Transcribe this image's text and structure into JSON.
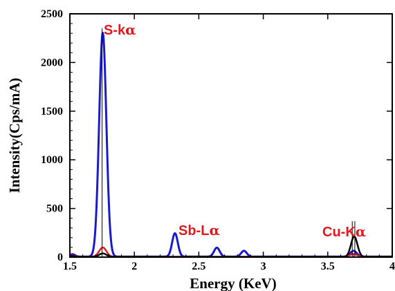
{
  "chart_data": {
    "type": "line",
    "title": "",
    "xlabel": "Energy (KeV)",
    "ylabel": "Intensity(Cps/mA)",
    "xlim": [
      1.5,
      4.0
    ],
    "ylim": [
      0,
      2500
    ],
    "xticks": [
      1.5,
      2.0,
      2.5,
      3.0,
      3.5,
      4.0
    ],
    "xtick_labels": [
      "1.5",
      "2",
      "2.5",
      "3",
      "3.5",
      "4"
    ],
    "yticks": [
      0,
      500,
      1000,
      1500,
      2000,
      2500
    ],
    "ytick_labels": [
      "0",
      "500",
      "1000",
      "1500",
      "2000",
      "2500"
    ],
    "grid": false,
    "legend": "none",
    "annotations": [
      {
        "main": "S-k",
        "greek": "α",
        "x": 1.77,
        "y": 2250,
        "color": "#e0191e"
      },
      {
        "main": "Sb-L",
        "greek": "α",
        "x": 2.33,
        "y": 240,
        "color": "#e0191e"
      },
      {
        "main": "Cu-K",
        "greek": "α",
        "x": 3.75,
        "y": 200,
        "color": "#e0191e"
      }
    ],
    "reference_lines": [
      {
        "x": 1.75,
        "y": 2350
      },
      {
        "x": 3.69,
        "y": 370
      },
      {
        "x": 3.71,
        "y": 370
      }
    ],
    "series": [
      {
        "color": "#1a1ac8",
        "baseline": 5,
        "peaks": [
          {
            "center": 1.755,
            "height": 2300,
            "sigma": 0.028
          },
          {
            "center": 2.315,
            "height": 240,
            "sigma": 0.022
          },
          {
            "center": 2.64,
            "height": 92,
            "sigma": 0.022
          },
          {
            "center": 2.85,
            "height": 60,
            "sigma": 0.022
          },
          {
            "center": 3.7,
            "height": 60,
            "sigma": 0.025
          },
          {
            "center": 1.52,
            "height": 25,
            "sigma": 0.02
          }
        ]
      },
      {
        "color": "#d42020",
        "baseline": 4,
        "peaks": [
          {
            "center": 1.755,
            "height": 95,
            "sigma": 0.028
          },
          {
            "center": 3.7,
            "height": 30,
            "sigma": 0.025
          },
          {
            "center": 1.52,
            "height": 12,
            "sigma": 0.02
          }
        ]
      },
      {
        "color": "#000000",
        "baseline": 3,
        "peaks": [
          {
            "center": 1.755,
            "height": 35,
            "sigma": 0.028
          },
          {
            "center": 3.705,
            "height": 210,
            "sigma": 0.025
          },
          {
            "center": 1.52,
            "height": 8,
            "sigma": 0.02
          }
        ]
      }
    ]
  }
}
